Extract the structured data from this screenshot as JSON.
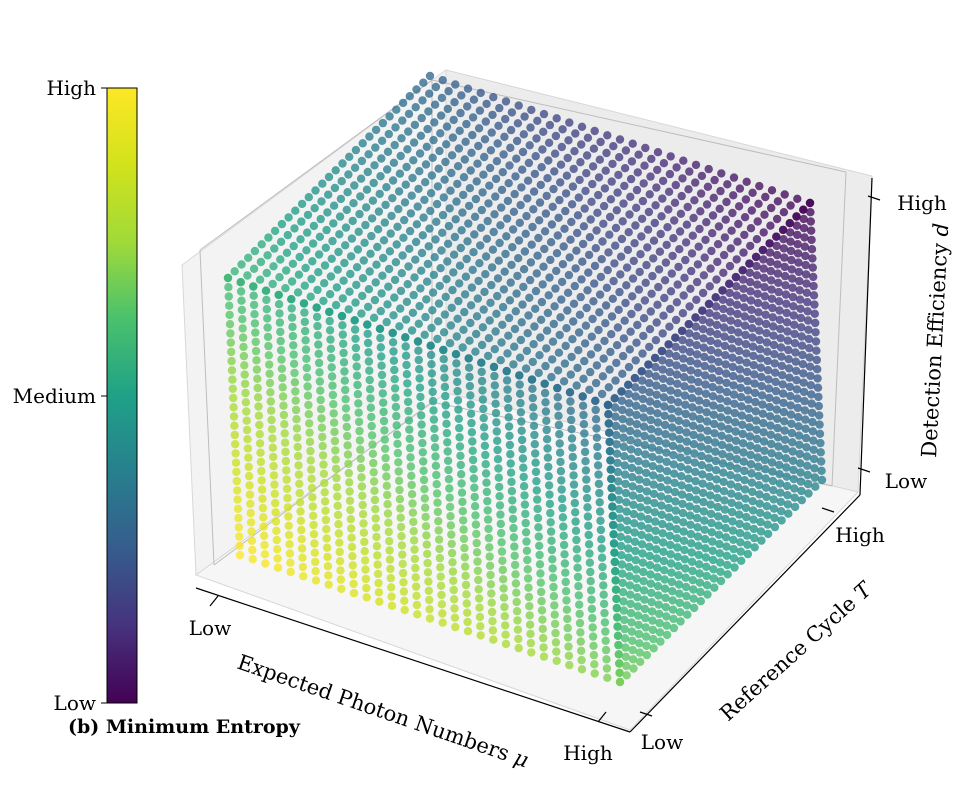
{
  "chart_data": {
    "type": "scatter",
    "subtype": "3d-scatter",
    "caption": "(b) Minimum Entropy",
    "axes": {
      "x": {
        "label": "Expected Photon Numbers",
        "symbol": "μ",
        "ticks": [
          "Low",
          "High"
        ]
      },
      "y": {
        "label": "Reference Cycle",
        "symbol": "T",
        "ticks": [
          "Low",
          "High"
        ]
      },
      "z": {
        "label": "Detection Efficiency",
        "symbol": "d",
        "ticks": [
          "Low",
          "High"
        ]
      }
    },
    "colorbar": {
      "ticks": [
        "Low",
        "Medium",
        "High"
      ],
      "colormap": "viridis",
      "placement": "left"
    },
    "value_trend": "minimum entropy is highest at low μ / low T / low d (yellow) and lowest at high μ / high T / high d (purple)",
    "grid": true
  }
}
